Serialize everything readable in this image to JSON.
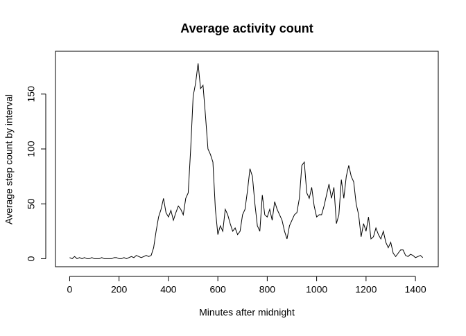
{
  "chart_data": {
    "type": "line",
    "title": "Average activity count",
    "x_label": "Minutes after midnight",
    "y_label": "Average step count by interval",
    "color": "#000000",
    "x": [
      0,
      10,
      20,
      30,
      40,
      50,
      60,
      70,
      80,
      90,
      100,
      110,
      120,
      130,
      140,
      150,
      160,
      170,
      180,
      190,
      200,
      210,
      220,
      230,
      240,
      250,
      260,
      270,
      280,
      290,
      300,
      310,
      320,
      330,
      340,
      350,
      360,
      370,
      380,
      390,
      400,
      410,
      420,
      430,
      440,
      450,
      460,
      470,
      480,
      490,
      500,
      510,
      520,
      530,
      540,
      550,
      560,
      570,
      580,
      590,
      600,
      610,
      620,
      630,
      640,
      650,
      660,
      670,
      680,
      690,
      700,
      710,
      720,
      730,
      740,
      750,
      760,
      770,
      780,
      790,
      800,
      810,
      820,
      830,
      840,
      850,
      860,
      870,
      880,
      890,
      900,
      910,
      920,
      930,
      940,
      950,
      960,
      970,
      980,
      990,
      1000,
      1010,
      1020,
      1030,
      1040,
      1050,
      1060,
      1070,
      1080,
      1090,
      1100,
      1110,
      1120,
      1130,
      1140,
      1150,
      1160,
      1170,
      1180,
      1190,
      1200,
      1210,
      1220,
      1230,
      1240,
      1250,
      1260,
      1270,
      1280,
      1290,
      1300,
      1310,
      1320,
      1330,
      1340,
      1350,
      1360,
      1370,
      1380,
      1390,
      1400,
      1410,
      1420,
      1430
    ],
    "values": [
      1,
      0,
      2,
      0,
      1,
      0,
      1,
      0,
      0,
      1,
      0,
      0,
      0,
      1,
      0,
      0,
      0,
      0,
      1,
      1,
      0,
      0,
      1,
      0,
      1,
      2,
      1,
      3,
      2,
      1,
      2,
      3,
      2,
      3,
      10,
      25,
      38,
      45,
      55,
      42,
      38,
      44,
      35,
      42,
      48,
      45,
      40,
      55,
      60,
      100,
      148,
      160,
      178,
      155,
      158,
      130,
      100,
      95,
      88,
      45,
      22,
      30,
      25,
      45,
      40,
      32,
      25,
      28,
      22,
      25,
      40,
      45,
      62,
      82,
      75,
      50,
      30,
      25,
      58,
      40,
      38,
      45,
      35,
      52,
      45,
      40,
      35,
      25,
      18,
      30,
      35,
      40,
      42,
      55,
      85,
      88,
      60,
      55,
      65,
      48,
      38,
      40,
      40,
      48,
      58,
      68,
      55,
      65,
      32,
      40,
      72,
      55,
      75,
      85,
      75,
      70,
      50,
      40,
      20,
      32,
      25,
      38,
      18,
      20,
      28,
      22,
      18,
      25,
      15,
      10,
      15,
      5,
      2,
      5,
      8,
      8,
      3,
      2,
      4,
      3,
      1,
      2,
      3,
      1
    ],
    "xlim": [
      -57.4,
      1492.4
    ],
    "ylim": [
      -7.3,
      189
    ],
    "xticks": [
      0,
      200,
      400,
      600,
      800,
      1000,
      1200,
      1400
    ],
    "yticks": [
      0,
      50,
      100,
      150
    ]
  }
}
